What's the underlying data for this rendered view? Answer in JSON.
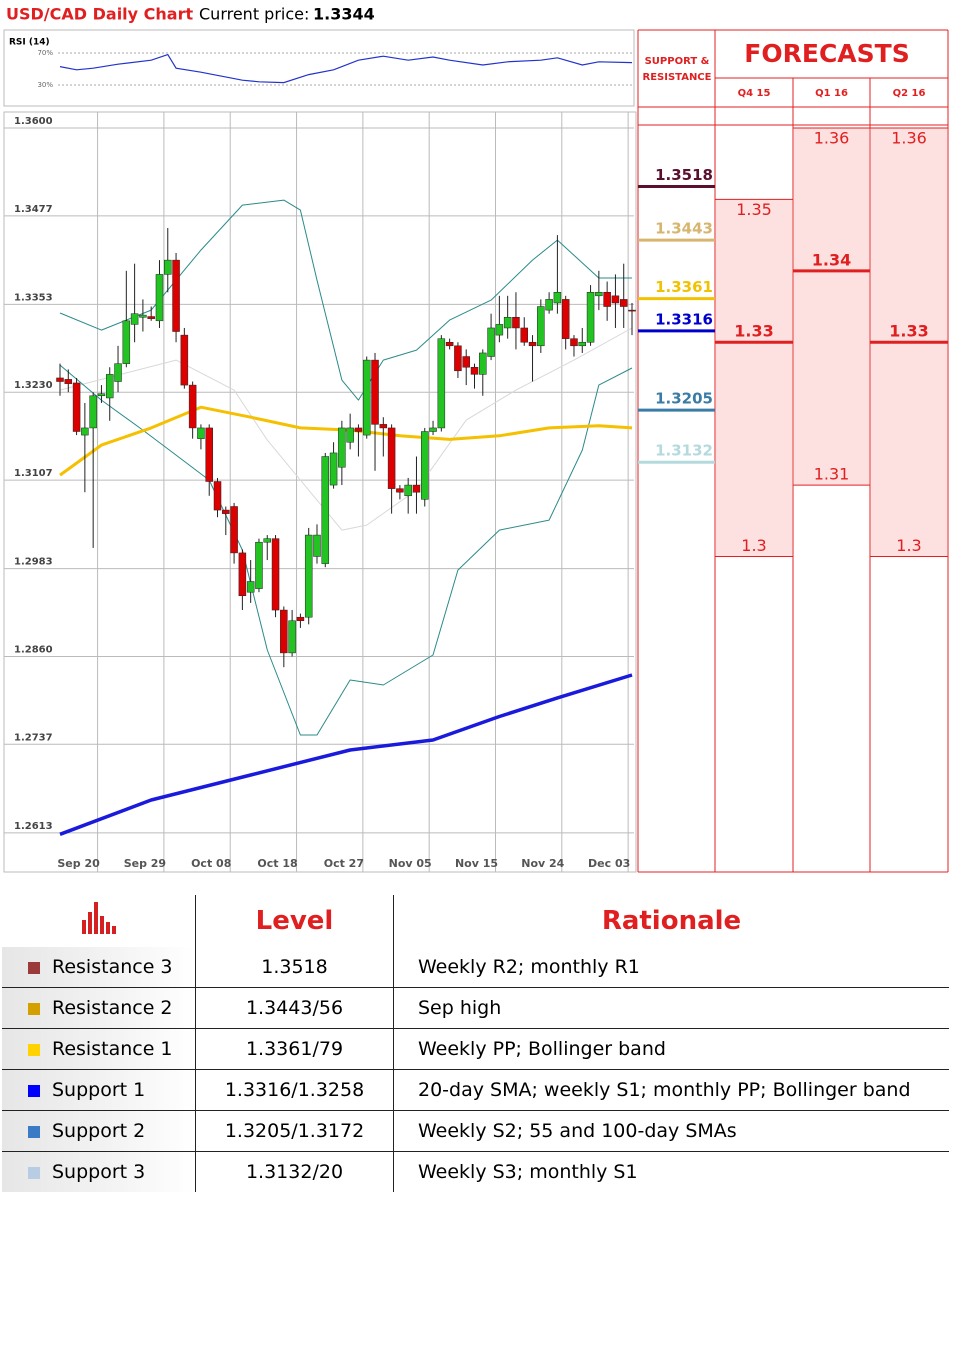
{
  "header": {
    "title": "USD/CAD Daily Chart",
    "price_label": "Current price:",
    "price": "1.3344"
  },
  "chart_data": {
    "type": "candlestick",
    "ylim": [
      1.2596,
      1.3607
    ],
    "yticks": [
      {
        "value": 1.36,
        "label": "1.3600"
      },
      1.3477,
      1.3353,
      {
        "value": 1.323,
        "label": "1.3230"
      },
      1.3107,
      1.2983,
      {
        "value": 1.286,
        "label": "1.2860"
      },
      1.2737,
      1.2613
    ],
    "grid": true,
    "up_color": "#22c322",
    "down_color": "#dd0000",
    "categories": [
      null,
      null,
      "Sep 20",
      null,
      null,
      null,
      null,
      null,
      null,
      null,
      "Sep 29",
      null,
      null,
      null,
      null,
      null,
      null,
      null,
      "Oct 08",
      null,
      null,
      null,
      null,
      null,
      null,
      null,
      "Oct 18",
      null,
      null,
      null,
      null,
      null,
      null,
      null,
      "Oct 27",
      null,
      null,
      null,
      null,
      null,
      null,
      null,
      "Nov 05",
      null,
      null,
      null,
      null,
      null,
      null,
      null,
      "Nov 15",
      null,
      null,
      null,
      null,
      null,
      null,
      null,
      "Nov 24",
      null,
      null,
      null,
      null,
      null,
      null,
      null,
      "Dec 03",
      null,
      null,
      null
    ],
    "open": [
      1.325,
      1.3248,
      1.3243,
      1.317,
      1.318,
      1.3225,
      1.3222,
      1.3245,
      1.327,
      1.3325,
      1.3335,
      1.3336,
      1.333,
      1.3395,
      1.3415,
      1.331,
      1.324,
      1.3165,
      1.318,
      1.3105,
      1.3065,
      1.307,
      1.3005,
      1.295,
      1.2955,
      1.302,
      1.3025,
      1.2925,
      1.2865,
      1.2915,
      1.2915,
      1.3,
      1.299,
      1.31,
      1.3125,
      1.316,
      1.318,
      1.317,
      1.3275,
      1.3185,
      1.318,
      1.3095,
      1.3085,
      1.31,
      1.308,
      1.3175,
      1.318,
      1.33,
      1.3295,
      1.328,
      1.3265,
      1.3255,
      1.328,
      1.331,
      1.332,
      1.3335,
      1.332,
      1.33,
      1.3295,
      1.3345,
      1.3355,
      1.336,
      1.3305,
      1.3295,
      1.33,
      1.3365,
      1.337,
      1.3365,
      1.336,
      1.3345
    ],
    "high": [
      1.327,
      1.3262,
      1.325,
      1.3215,
      1.323,
      1.324,
      1.3265,
      1.3295,
      1.34,
      1.341,
      1.336,
      1.335,
      1.3415,
      1.346,
      1.3425,
      1.332,
      1.3245,
      1.3185,
      1.3185,
      1.311,
      1.307,
      1.3075,
      1.301,
      1.2995,
      1.3025,
      1.303,
      1.303,
      1.293,
      1.2925,
      1.292,
      1.304,
      1.3045,
      1.3145,
      1.316,
      1.319,
      1.32,
      1.3185,
      1.328,
      1.3285,
      1.3195,
      1.3185,
      1.31,
      1.311,
      1.314,
      1.318,
      1.319,
      1.331,
      1.3305,
      1.33,
      1.329,
      1.327,
      1.329,
      1.334,
      1.3365,
      1.3365,
      1.337,
      1.3335,
      1.331,
      1.336,
      1.337,
      1.345,
      1.3365,
      1.331,
      1.332,
      1.338,
      1.34,
      1.3385,
      1.3395,
      1.341,
      1.3355
    ],
    "low": [
      1.3225,
      1.323,
      1.317,
      1.309,
      1.3012,
      1.3215,
      1.319,
      1.323,
      1.3265,
      1.33,
      1.3315,
      1.333,
      1.332,
      1.337,
      1.33,
      1.3235,
      1.3165,
      1.315,
      1.3085,
      1.3055,
      1.303,
      1.299,
      1.2925,
      1.2935,
      1.295,
      1.2995,
      1.2915,
      1.2845,
      1.286,
      1.29,
      1.2905,
      1.299,
      1.2985,
      1.3095,
      1.31,
      1.315,
      1.314,
      1.3165,
      1.312,
      1.314,
      1.306,
      1.308,
      1.306,
      1.306,
      1.307,
      1.317,
      1.3175,
      1.329,
      1.325,
      1.324,
      1.3235,
      1.3225,
      1.3275,
      1.33,
      1.3305,
      1.329,
      1.3295,
      1.3245,
      1.3285,
      1.334,
      1.334,
      1.329,
      1.328,
      1.3285,
      1.3295,
      1.3345,
      1.333,
      1.332,
      1.332,
      1.331
    ],
    "close": [
      1.3245,
      1.3242,
      1.3175,
      1.318,
      1.3225,
      1.3228,
      1.3255,
      1.327,
      1.333,
      1.334,
      1.3338,
      1.3333,
      1.3395,
      1.3415,
      1.3315,
      1.324,
      1.318,
      1.318,
      1.3105,
      1.3065,
      1.306,
      1.3005,
      1.2945,
      1.2965,
      1.302,
      1.3025,
      1.2925,
      1.2865,
      1.291,
      1.291,
      1.303,
      1.303,
      1.314,
      1.3145,
      1.318,
      1.318,
      1.3175,
      1.3275,
      1.3185,
      1.318,
      1.3095,
      1.309,
      1.31,
      1.309,
      1.3175,
      1.318,
      1.3305,
      1.3295,
      1.326,
      1.3265,
      1.3255,
      1.3285,
      1.332,
      1.3325,
      1.3335,
      1.332,
      1.33,
      1.3295,
      1.335,
      1.336,
      1.337,
      1.3305,
      1.3295,
      1.33,
      1.337,
      1.337,
      1.335,
      1.3355,
      1.335,
      1.3344
    ],
    "overlays": [
      {
        "color": "#d8d8d8",
        "width": 1,
        "x": [
          0,
          7,
          14,
          21,
          25,
          30,
          34,
          37,
          43,
          49,
          55,
          62,
          69
        ],
        "values": [
          1.3233,
          1.3254,
          1.3275,
          1.3233,
          1.3163,
          1.3093,
          1.3037,
          1.3044,
          1.3093,
          1.3191,
          1.3233,
          1.3275,
          1.332
        ]
      },
      {
        "color": "#2a8a8a",
        "width": 1,
        "x": [
          0,
          5,
          11,
          17,
          22,
          27,
          29,
          31,
          34,
          36,
          39,
          43,
          47,
          52,
          57,
          60,
          65,
          69
        ],
        "values": [
          1.3341,
          1.3317,
          1.3345,
          1.3429,
          1.3492,
          1.3499,
          1.3485,
          1.3387,
          1.3247,
          1.3219,
          1.3275,
          1.3289,
          1.3331,
          1.3359,
          1.3415,
          1.3443,
          1.339,
          1.339
        ]
      },
      {
        "color": "#2a8a8a",
        "width": 1,
        "x": [
          0,
          5,
          10,
          14,
          18,
          22,
          25,
          29,
          31,
          35,
          39,
          45,
          48,
          53,
          59,
          63,
          65,
          69
        ],
        "values": [
          1.3268,
          1.3219,
          1.3177,
          1.3142,
          1.3107,
          1.3009,
          1.2869,
          1.275,
          1.275,
          1.2827,
          1.282,
          1.2862,
          1.2981,
          1.3037,
          1.3051,
          1.3149,
          1.324,
          1.3264
        ]
      },
      {
        "color": "#f5c000",
        "width": 3,
        "x": [
          0,
          5,
          11,
          17,
          23,
          29,
          35,
          41,
          47,
          53,
          59,
          65,
          69
        ],
        "values": [
          1.3114,
          1.3156,
          1.318,
          1.3209,
          1.3195,
          1.318,
          1.3177,
          1.3169,
          1.3164,
          1.3169,
          1.318,
          1.3183,
          1.318
        ]
      },
      {
        "color": "#1a1adc",
        "width": 3.5,
        "x": [
          0,
          11,
          23,
          35,
          45,
          53,
          60,
          69
        ],
        "values": [
          1.2611,
          1.2659,
          1.2694,
          1.2729,
          1.2743,
          1.2776,
          1.2802,
          1.2834
        ]
      }
    ],
    "rsi": {
      "title": "RSI (14)",
      "color": "#2233cc",
      "ylim": [
        5,
        95
      ],
      "yticks": [
        {
          "value": 70,
          "label": "70%"
        },
        {
          "value": 30,
          "label": "30%"
        }
      ],
      "x": [
        0,
        2,
        4,
        7,
        11,
        13,
        14,
        17,
        22,
        24,
        27,
        30,
        33,
        36,
        39,
        42,
        45,
        47,
        51,
        54,
        58,
        60,
        63,
        65,
        69
      ],
      "values": [
        53,
        49,
        51,
        56,
        61,
        68,
        51,
        46,
        36,
        34,
        33,
        43,
        49,
        61,
        66,
        61,
        65,
        61,
        55,
        59,
        61,
        64,
        55,
        59,
        58
      ]
    },
    "levels": {
      "title": "SUPPORT & RESISTANCE",
      "items": [
        {
          "value": 1.3518,
          "color": "#5a0f2e"
        },
        {
          "value": 1.3443,
          "color": "#d6b56e"
        },
        {
          "value": 1.3361,
          "color": "#f2c200"
        },
        {
          "value": 1.3316,
          "color": "#0000cc"
        },
        {
          "value": 1.3205,
          "color": "#3a7ca5"
        },
        {
          "value": 1.3132,
          "color": "#b5dadd"
        }
      ]
    },
    "forecasts": {
      "title": "FORECASTS",
      "color": "#e02020",
      "fill": "#fde0e0",
      "columns": [
        {
          "label": "Q4 15",
          "high": 1.35,
          "mid": 1.33,
          "low": 1.3
        },
        {
          "label": "Q1 16",
          "high": 1.36,
          "mid": 1.34,
          "low": 1.31
        },
        {
          "label": "Q2 16",
          "high": 1.36,
          "mid": 1.33,
          "low": 1.3
        }
      ]
    }
  },
  "table": {
    "header": [
      "Level",
      "Rationale"
    ],
    "rows": [
      {
        "name": "Resistance 3",
        "color": "#9b3a3a",
        "level": "1.3518",
        "rationale": "Weekly R2; monthly R1"
      },
      {
        "name": "Resistance 2",
        "color": "#d4a000",
        "level": "1.3443/56",
        "rationale": "Sep high"
      },
      {
        "name": "Resistance 1",
        "color": "#ffd200",
        "level": "1.3361/79",
        "rationale": "Weekly PP; Bollinger band"
      },
      {
        "name": "Support 1",
        "color": "#0000ff",
        "level": "1.3316/1.3258",
        "rationale": "20-day SMA; weekly S1; monthly PP; Bollinger band"
      },
      {
        "name": "Support 2",
        "color": "#3b7ac4",
        "level": "1.3205/1.3172",
        "rationale": "Weekly S2; 55 and 100-day SMAs"
      },
      {
        "name": "Support 3",
        "color": "#b8cce4",
        "level": "1.3132/20",
        "rationale": "Weekly S3; monthly S1"
      }
    ]
  }
}
